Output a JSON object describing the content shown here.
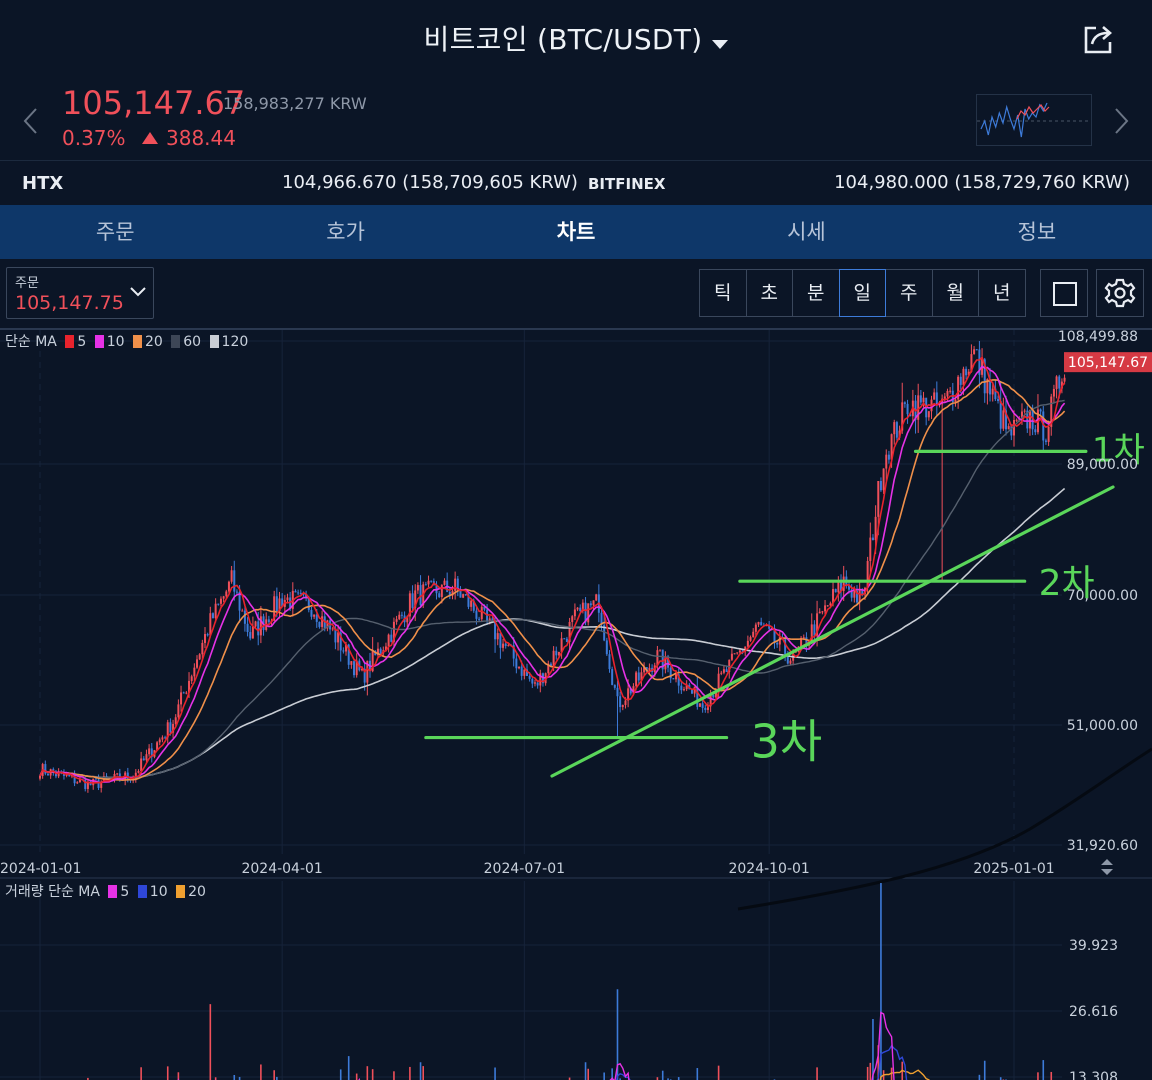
{
  "header": {
    "title": "비트코인 (BTC/USDT)",
    "share_icon": "share-icon",
    "dropdown_icon": "caret-down-icon"
  },
  "ticker": {
    "price": "105,147.67",
    "krw": "158,983,277 KRW",
    "change_pct": "0.37%",
    "change_abs": "388.44",
    "change_direction": "up",
    "up_color": "#f0505a",
    "down_color": "#3d7bd9"
  },
  "exchanges": [
    {
      "name": "HTX",
      "value": "104,966.670 (158,709,605 KRW)"
    },
    {
      "name": "BITFINEX",
      "value": "104,980.000 (158,729,760 KRW)"
    }
  ],
  "tabs": [
    {
      "label": "주문",
      "active": false
    },
    {
      "label": "호가",
      "active": false
    },
    {
      "label": "차트",
      "active": true
    },
    {
      "label": "시세",
      "active": false
    },
    {
      "label": "정보",
      "active": false
    }
  ],
  "toolbar": {
    "order_label": "주문",
    "order_value": "105,147.75",
    "periods": [
      {
        "label": "틱",
        "active": false
      },
      {
        "label": "초",
        "active": false
      },
      {
        "label": "분",
        "active": false
      },
      {
        "label": "일",
        "active": true
      },
      {
        "label": "주",
        "active": false
      },
      {
        "label": "월",
        "active": false
      },
      {
        "label": "년",
        "active": false
      }
    ],
    "draw_icon": "square-icon",
    "settings_icon": "gear-icon"
  },
  "legend": {
    "price_prefix": "단순 MA",
    "price_ma": [
      {
        "period": "5",
        "color": "#e8232d"
      },
      {
        "period": "10",
        "color": "#e632e6"
      },
      {
        "period": "20",
        "color": "#f0904a"
      },
      {
        "period": "60",
        "color": "#3d4656"
      },
      {
        "period": "120",
        "color": "#c9cdd4"
      }
    ],
    "volume_prefix": "거래량 단순 MA",
    "volume_ma": [
      {
        "period": "5",
        "color": "#e632e6"
      },
      {
        "period": "10",
        "color": "#2f47d8"
      },
      {
        "period": "20",
        "color": "#f0a030"
      }
    ]
  },
  "chart_data": {
    "type": "candlestick",
    "timeframe": "daily",
    "x_ticks": [
      "2024-01-01",
      "2024-04-01",
      "2024-07-01",
      "2024-10-01",
      "2025-01-01"
    ],
    "y_ticks": [
      "31,920.60",
      "51,000.00",
      "70,000.00",
      "89,000.00",
      "108,499.88"
    ],
    "y_max": 108499.88,
    "y_min": 31920.6,
    "current_price_label": "105,147.67",
    "price_path": [
      {
        "date": "2024-01-01",
        "close": 44000
      },
      {
        "date": "2024-01-20",
        "close": 41500
      },
      {
        "date": "2024-02-05",
        "close": 43000
      },
      {
        "date": "2024-02-20",
        "close": 51500
      },
      {
        "date": "2024-03-05",
        "close": 66000
      },
      {
        "date": "2024-03-13",
        "close": 72000
      },
      {
        "date": "2024-03-20",
        "close": 64000
      },
      {
        "date": "2024-04-01",
        "close": 69500
      },
      {
        "date": "2024-04-12",
        "close": 68500
      },
      {
        "date": "2024-04-20",
        "close": 64500
      },
      {
        "date": "2024-05-01",
        "close": 58000
      },
      {
        "date": "2024-05-21",
        "close": 70000
      },
      {
        "date": "2024-06-05",
        "close": 71000
      },
      {
        "date": "2024-06-20",
        "close": 64500
      },
      {
        "date": "2024-07-05",
        "close": 56500
      },
      {
        "date": "2024-07-20",
        "close": 66500
      },
      {
        "date": "2024-07-29",
        "close": 69000
      },
      {
        "date": "2024-08-05",
        "close": 54000
      },
      {
        "date": "2024-08-20",
        "close": 61000
      },
      {
        "date": "2024-09-06",
        "close": 54000
      },
      {
        "date": "2024-09-27",
        "close": 65500
      },
      {
        "date": "2024-10-10",
        "close": 60500
      },
      {
        "date": "2024-10-29",
        "close": 72000
      },
      {
        "date": "2024-11-05",
        "close": 69000
      },
      {
        "date": "2024-11-13",
        "close": 90000
      },
      {
        "date": "2024-11-22",
        "close": 98500
      },
      {
        "date": "2024-12-05",
        "close": 98000
      },
      {
        "date": "2024-12-17",
        "close": 106500
      },
      {
        "date": "2024-12-30",
        "close": 93500
      },
      {
        "date": "2025-01-07",
        "close": 96500
      },
      {
        "date": "2025-01-13",
        "close": 94500
      },
      {
        "date": "2025-01-20",
        "close": 105147
      }
    ],
    "annotations": [
      {
        "label": "1차",
        "price": 91000,
        "from": "2024-11-25",
        "to": "2025-01-28",
        "color": "#5ad65a"
      },
      {
        "label": "2차",
        "price": 72000,
        "from": "2024-09-20",
        "to": "2025-01-05",
        "color": "#5ad65a"
      },
      {
        "label": "3차",
        "price": 49000,
        "from": "2024-05-25",
        "to": "2024-09-15",
        "color": "#5ad65a"
      }
    ],
    "volume_ticks": [
      "13.308",
      "26.616",
      "39.923"
    ]
  }
}
